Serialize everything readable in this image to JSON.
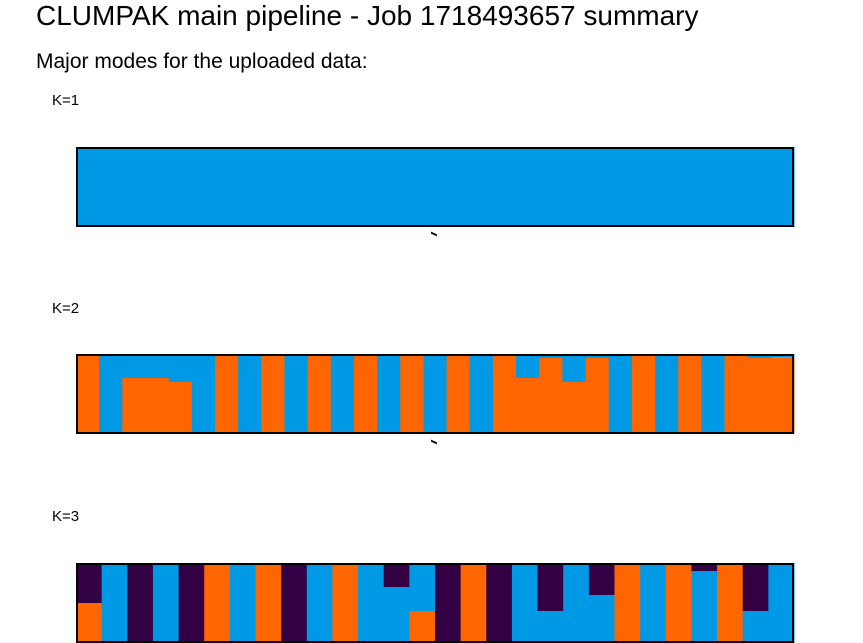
{
  "header": {
    "title": "CLUMPAK main pipeline - Job 1718493657 summary",
    "subtitle": "Major modes for the uploaded data:"
  },
  "colors": {
    "cluster_blue": "#0099E6",
    "cluster_orange": "#FF6600",
    "cluster_purple": "#330044",
    "border": "#000000"
  },
  "chart_data": [
    {
      "type": "bar",
      "label": "K=1",
      "stacked": true,
      "individuals": 1,
      "series": [
        {
          "color": "#0099E6",
          "values": [
            1.0
          ]
        }
      ]
    },
    {
      "type": "bar",
      "label": "K=2",
      "stacked": true,
      "series": [
        {
          "color": "#0099E6",
          "values": [
            0.02,
            1.0,
            0.3,
            0.3,
            0.35,
            1.0,
            0.0,
            1.0,
            0.0,
            1.0,
            0.0,
            1.0,
            0.0,
            1.0,
            0.0,
            1.0,
            0.0,
            1.0,
            0.0,
            0.3,
            0.05,
            0.35,
            0.05,
            1.0,
            0.0,
            1.0,
            0.0,
            1.0,
            0.0,
            0.05,
            0.04
          ]
        },
        {
          "color": "#FF6600",
          "values": [
            0.98,
            0.0,
            0.7,
            0.7,
            0.65,
            0.0,
            1.0,
            0.0,
            1.0,
            0.0,
            1.0,
            0.0,
            1.0,
            0.0,
            1.0,
            0.0,
            1.0,
            0.0,
            1.0,
            0.7,
            0.95,
            0.65,
            0.95,
            0.0,
            1.0,
            0.0,
            1.0,
            0.0,
            1.0,
            0.95,
            0.96
          ]
        }
      ]
    },
    {
      "type": "bar",
      "label": "K=3",
      "stacked": true,
      "series": [
        {
          "color": "#330044",
          "values": [
            0.5,
            0.0,
            1.0,
            0.0,
            1.0,
            0.0,
            0.0,
            0.0,
            1.0,
            0.0,
            0.0,
            0.0,
            0.3,
            0.0,
            1.0,
            0.0,
            1.0,
            0.0,
            0.6,
            0.0,
            0.4,
            0.0,
            0.0,
            0.0,
            0.1,
            0.0,
            0.6,
            0.0
          ]
        },
        {
          "color": "#0099E6",
          "values": [
            0.0,
            1.0,
            0.0,
            1.0,
            0.0,
            0.0,
            1.0,
            0.0,
            0.0,
            1.0,
            0.0,
            1.0,
            0.7,
            0.6,
            0.0,
            0.0,
            0.0,
            1.0,
            0.4,
            1.0,
            0.6,
            0.0,
            1.0,
            0.0,
            0.9,
            0.0,
            0.4,
            1.0
          ]
        },
        {
          "color": "#FF6600",
          "values": [
            0.5,
            0.0,
            0.0,
            0.0,
            0.0,
            1.0,
            0.0,
            1.0,
            0.0,
            0.0,
            1.0,
            0.0,
            0.0,
            0.4,
            0.0,
            1.0,
            0.0,
            0.0,
            0.0,
            0.0,
            0.0,
            1.0,
            0.0,
            1.0,
            0.0,
            1.0,
            0.0,
            0.0
          ]
        }
      ]
    }
  ]
}
